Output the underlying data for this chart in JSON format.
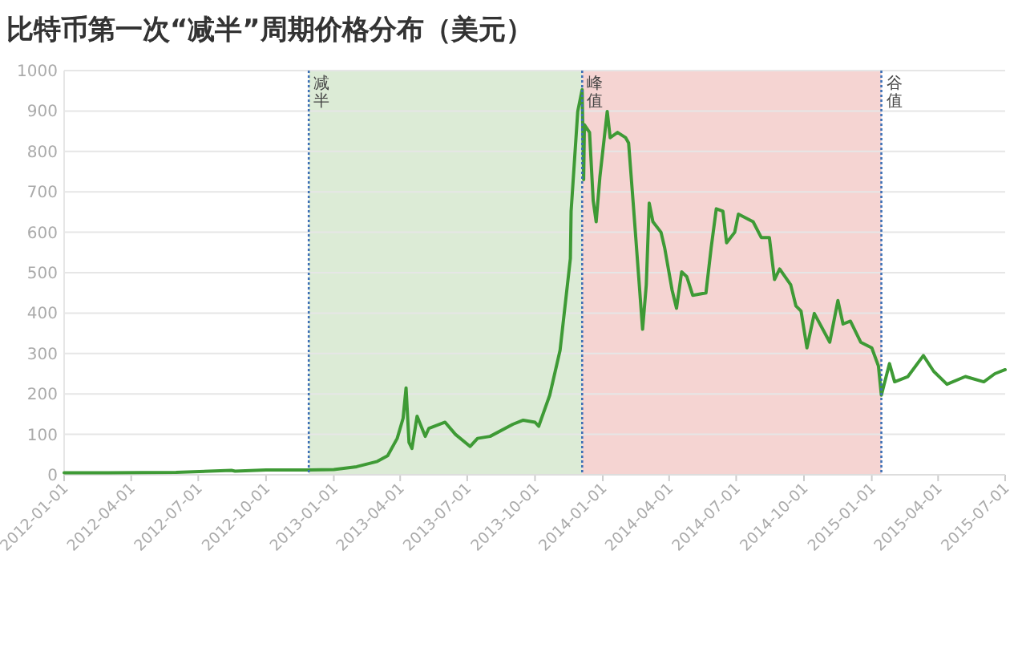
{
  "chart_data": {
    "type": "line",
    "title": "比特币第一次“减半”周期价格分布（美元）",
    "x": [
      "2012-01-01",
      "2012-03-01",
      "2012-06-01",
      "2012-08-15",
      "2012-08-20",
      "2012-10-01",
      "2012-11-28",
      "2013-01-01",
      "2013-02-01",
      "2013-03-01",
      "2013-03-15",
      "2013-03-28",
      "2013-04-05",
      "2013-04-09",
      "2013-04-13",
      "2013-04-17",
      "2013-04-24",
      "2013-05-05",
      "2013-05-10",
      "2013-06-01",
      "2013-06-15",
      "2013-07-05",
      "2013-07-15",
      "2013-08-01",
      "2013-09-01",
      "2013-09-15",
      "2013-10-01",
      "2013-10-06",
      "2013-10-21",
      "2013-11-04",
      "2013-11-18",
      "2013-11-19",
      "2013-11-28",
      "2013-12-04",
      "2013-12-06",
      "2013-12-07",
      "2013-12-14",
      "2013-12-19",
      "2013-12-23",
      "2013-12-28",
      "2014-01-07",
      "2014-01-11",
      "2014-01-21",
      "2014-02-01",
      "2014-02-05",
      "2014-02-11",
      "2014-02-24",
      "2014-03-01",
      "2014-03-05",
      "2014-03-10",
      "2014-03-21",
      "2014-03-26",
      "2014-04-05",
      "2014-04-11",
      "2014-04-18",
      "2014-04-25",
      "2014-05-03",
      "2014-05-21",
      "2014-05-28",
      "2014-06-04",
      "2014-06-13",
      "2014-06-18",
      "2014-06-29",
      "2014-07-04",
      "2014-07-24",
      "2014-08-04",
      "2014-08-15",
      "2014-08-22",
      "2014-08-29",
      "2014-09-13",
      "2014-09-20",
      "2014-09-27",
      "2014-10-05",
      "2014-10-15",
      "2014-11-05",
      "2014-11-16",
      "2014-11-23",
      "2014-12-03",
      "2014-12-17",
      "2015-01-01",
      "2015-01-10",
      "2015-01-14",
      "2015-01-25",
      "2015-02-01",
      "2015-02-19",
      "2015-03-12",
      "2015-03-26",
      "2015-04-13",
      "2015-05-08",
      "2015-06-02",
      "2015-06-17",
      "2015-07-01"
    ],
    "series": [
      {
        "color": "#3e9a35",
        "values": [
          5,
          5,
          6,
          11,
          9,
          12,
          12,
          13,
          20,
          33,
          47,
          90,
          140,
          215,
          80,
          65,
          145,
          95,
          115,
          130,
          100,
          70,
          90,
          95,
          125,
          135,
          130,
          120,
          197,
          308,
          535,
          652,
          899,
          953,
          730,
          866,
          847,
          678,
          626,
          736,
          899,
          834,
          847,
          834,
          821,
          678,
          360,
          470,
          672,
          626,
          600,
          561,
          457,
          412,
          502,
          490,
          444,
          450,
          561,
          658,
          652,
          574,
          600,
          645,
          626,
          587,
          587,
          483,
          509,
          470,
          418,
          405,
          314,
          399,
          328,
          431,
          373,
          380,
          328,
          314,
          269,
          197,
          275,
          230,
          243,
          295,
          256,
          224,
          243,
          230,
          250,
          260
        ]
      }
    ],
    "xlim": [
      "2012-01-01",
      "2015-07-01"
    ],
    "xticks": [
      "2012-01-01",
      "2012-04-01",
      "2012-07-01",
      "2012-10-01",
      "2013-01-01",
      "2013-04-01",
      "2013-07-01",
      "2013-10-01",
      "2014-01-01",
      "2014-04-01",
      "2014-07-01",
      "2014-10-01",
      "2015-01-01",
      "2015-04-01",
      "2015-07-01"
    ],
    "ylim": [
      0,
      1000
    ],
    "yticks": [
      0,
      100,
      200,
      300,
      400,
      500,
      600,
      700,
      800,
      900,
      1000
    ],
    "grid": "y",
    "bands": [
      {
        "axis": "x",
        "from": "2012-11-28",
        "to": "2013-12-04",
        "color": "#dcebd6"
      },
      {
        "axis": "x",
        "from": "2013-12-04",
        "to": "2015-01-14",
        "color": "#f5d4d2"
      }
    ],
    "ref_lines": [
      {
        "axis": "x",
        "value": "2012-11-28",
        "label": "减半",
        "color": "#3d6fb5",
        "line_style": "dotted"
      },
      {
        "axis": "x",
        "value": "2013-12-04",
        "label": "峰值",
        "color": "#3d6fb5",
        "line_style": "dotted"
      },
      {
        "axis": "x",
        "value": "2015-01-14",
        "label": "谷值",
        "color": "#3d6fb5",
        "line_style": "dotted"
      }
    ]
  }
}
